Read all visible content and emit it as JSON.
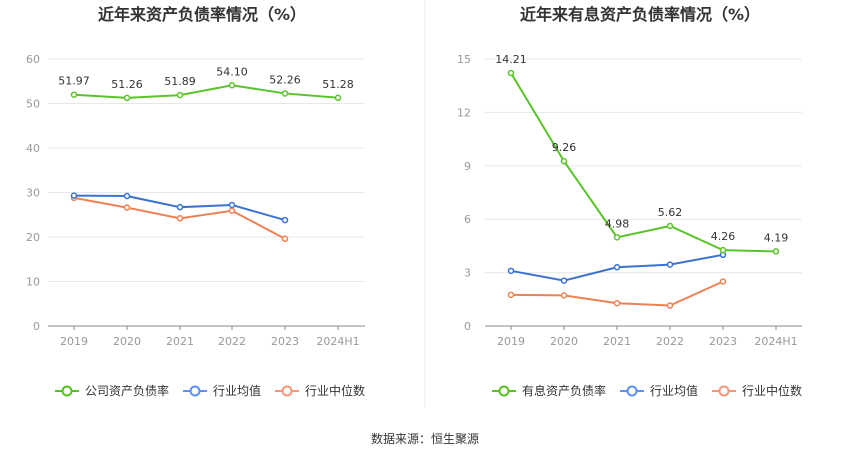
{
  "source_label": "数据来源：恒生聚源",
  "legend_colors": {
    "company": "#52c41a",
    "industry_avg": "#5b8ff9",
    "industry_median": "#f6957a"
  },
  "chart_data": [
    {
      "type": "line",
      "title": "近年来资产负债率情况（%）",
      "categories": [
        "2019",
        "2020",
        "2021",
        "2022",
        "2023",
        "2024H1"
      ],
      "ylim": [
        0,
        60
      ],
      "yticks": [
        "0",
        "10",
        "20",
        "30",
        "40",
        "50",
        "60"
      ],
      "grid": true,
      "legend_position": "bottom",
      "series": [
        {
          "name": "公司资产负债率",
          "color": "#52c41a",
          "line_color": "#5ac42a",
          "values": [
            51.97,
            51.26,
            51.89,
            54.1,
            52.26,
            51.28
          ],
          "labels": [
            "51.97",
            "51.26",
            "51.89",
            "54.10",
            "52.26",
            "51.28"
          ]
        },
        {
          "name": "行业均值",
          "color": "#5b8ff9",
          "line_color": "#3a73d0",
          "values": [
            29.3,
            29.2,
            26.7,
            27.2,
            23.8,
            null
          ]
        },
        {
          "name": "行业中位数",
          "color": "#f6957a",
          "line_color": "#ec8155",
          "values": [
            28.8,
            26.6,
            24.2,
            25.9,
            19.6,
            null
          ]
        }
      ]
    },
    {
      "type": "line",
      "title": "近年来有息资产负债率情况（%）",
      "categories": [
        "2019",
        "2020",
        "2021",
        "2022",
        "2023",
        "2024H1"
      ],
      "ylim": [
        0,
        15
      ],
      "yticks": [
        "0",
        "3",
        "6",
        "9",
        "12",
        "15"
      ],
      "grid": true,
      "legend_position": "bottom",
      "series": [
        {
          "name": "有息资产负债率",
          "color": "#52c41a",
          "line_color": "#5ac42a",
          "values": [
            14.21,
            9.26,
            4.98,
            5.62,
            4.26,
            4.19
          ],
          "labels": [
            "14.21",
            "9.26",
            "4.98",
            "5.62",
            "4.26",
            "4.19"
          ]
        },
        {
          "name": "行业均值",
          "color": "#5b8ff9",
          "line_color": "#3a73d0",
          "values": [
            3.1,
            2.55,
            3.3,
            3.45,
            4.0,
            null
          ]
        },
        {
          "name": "行业中位数",
          "color": "#f6957a",
          "line_color": "#ec8155",
          "values": [
            1.75,
            1.72,
            1.28,
            1.15,
            2.5,
            null
          ]
        }
      ]
    }
  ]
}
